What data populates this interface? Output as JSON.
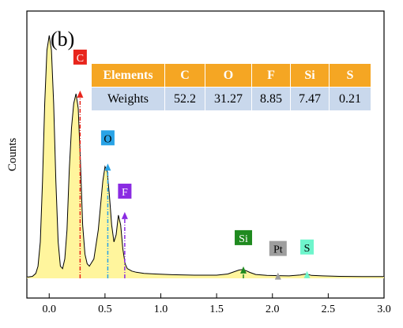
{
  "chart_data": {
    "type": "line",
    "title": "",
    "panel_label": "(b)",
    "xlabel": "",
    "ylabel": "Counts",
    "xlim": [
      -0.2,
      3.0
    ],
    "ylim": [
      0,
      100
    ],
    "x_ticks": [
      0.0,
      0.5,
      1.0,
      1.5,
      2.0,
      2.5,
      3.0
    ],
    "x_tick_labels": [
      "0.0",
      "0.5",
      "1.0",
      "1.5",
      "2.0",
      "2.5",
      "3.0"
    ],
    "grid": false,
    "legend": "none",
    "spectrum": {
      "fill_color": "#fff59d",
      "line_color": "#000000",
      "x": [
        -0.2,
        -0.15,
        -0.12,
        -0.1,
        -0.08,
        -0.06,
        -0.04,
        -0.02,
        0.0,
        0.02,
        0.04,
        0.06,
        0.08,
        0.1,
        0.12,
        0.14,
        0.16,
        0.18,
        0.2,
        0.22,
        0.24,
        0.26,
        0.28,
        0.3,
        0.32,
        0.34,
        0.36,
        0.4,
        0.44,
        0.48,
        0.5,
        0.52,
        0.54,
        0.56,
        0.58,
        0.6,
        0.62,
        0.64,
        0.66,
        0.68,
        0.7,
        0.72,
        0.74,
        0.78,
        0.85,
        0.95,
        1.1,
        1.3,
        1.5,
        1.6,
        1.65,
        1.7,
        1.73,
        1.76,
        1.8,
        1.85,
        1.95,
        2.05,
        2.15,
        2.25,
        2.3,
        2.32,
        2.35,
        2.45,
        2.6,
        2.8,
        3.0
      ],
      "y": [
        0.5,
        0.8,
        2,
        5,
        15,
        40,
        72,
        94,
        100,
        94,
        72,
        40,
        15,
        5,
        4,
        8,
        20,
        45,
        62,
        72,
        76,
        70,
        48,
        22,
        10,
        6,
        5,
        8,
        20,
        40,
        46,
        44,
        34,
        22,
        15,
        18,
        26,
        22,
        12,
        6,
        4,
        3.5,
        3,
        2.5,
        2,
        1.8,
        1.5,
        1.3,
        1.3,
        1.8,
        2.6,
        3.4,
        3.6,
        3.2,
        2.4,
        1.6,
        1.2,
        1.1,
        1,
        1.4,
        1.8,
        1.6,
        1.2,
        1,
        0.8,
        0.7,
        0.7
      ]
    },
    "peaks": [
      {
        "label": "C",
        "x": 0.277,
        "y": 76,
        "color": "#e8251c",
        "text_color": "#ffffff"
      },
      {
        "label": "O",
        "x": 0.525,
        "y": 46,
        "color": "#29a3e6",
        "text_color": "#000000"
      },
      {
        "label": "F",
        "x": 0.677,
        "y": 26,
        "color": "#8a2be2",
        "text_color": "#ffffff"
      },
      {
        "label": "Si",
        "x": 1.74,
        "y": 3.6,
        "color": "#1f8a1f",
        "text_color": "#ffffff"
      },
      {
        "label": "Pt",
        "x": 2.05,
        "y": 1.1,
        "color": "#9e9e9e",
        "text_color": "#000000"
      },
      {
        "label": "S",
        "x": 2.31,
        "y": 1.7,
        "color": "#6ef5cc",
        "text_color": "#000000"
      }
    ],
    "table": {
      "header": [
        "Elements",
        "C",
        "O",
        "F",
        "Si",
        "S"
      ],
      "row": [
        "Weights",
        "52.2",
        "31.27",
        "8.85",
        "7.47",
        "0.21"
      ]
    }
  }
}
